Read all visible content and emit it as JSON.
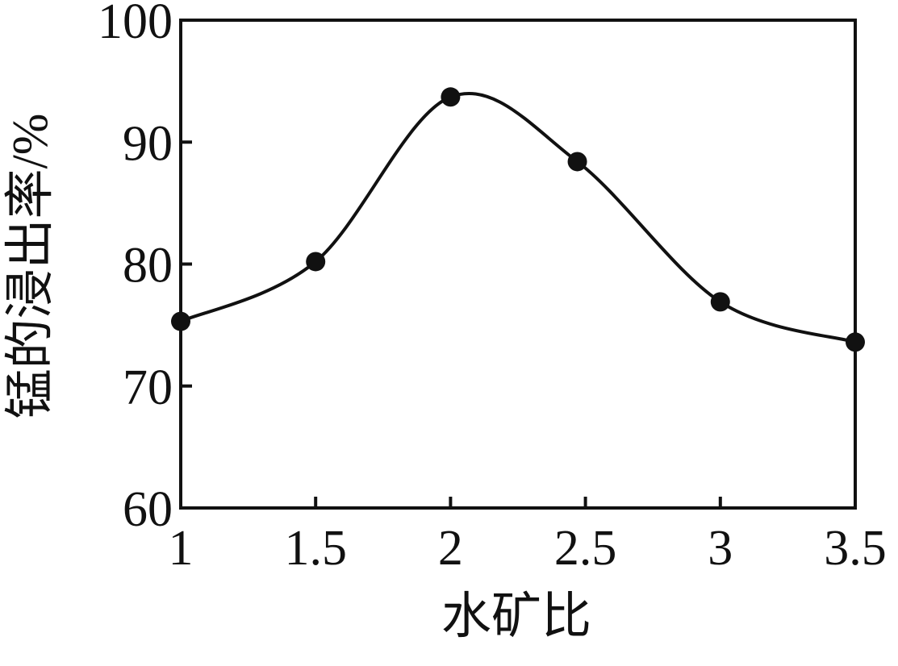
{
  "chart_data": {
    "type": "line",
    "x_label": "水矿比",
    "y_label": "锰的浸出率/%",
    "x": [
      1,
      1.5,
      2,
      2.47,
      3,
      3.5
    ],
    "series": [
      {
        "color": "#111111",
        "values": [
          75.3,
          80.2,
          93.7,
          88.4,
          76.9,
          73.6
        ]
      }
    ],
    "xlim": [
      1,
      3.5
    ],
    "xticks": [
      1,
      1.5,
      2,
      2.5,
      3,
      3.5
    ],
    "ylim": [
      60,
      100
    ],
    "yticks": [
      60,
      70,
      80,
      90,
      100
    ],
    "smooth": true,
    "markers": true
  }
}
